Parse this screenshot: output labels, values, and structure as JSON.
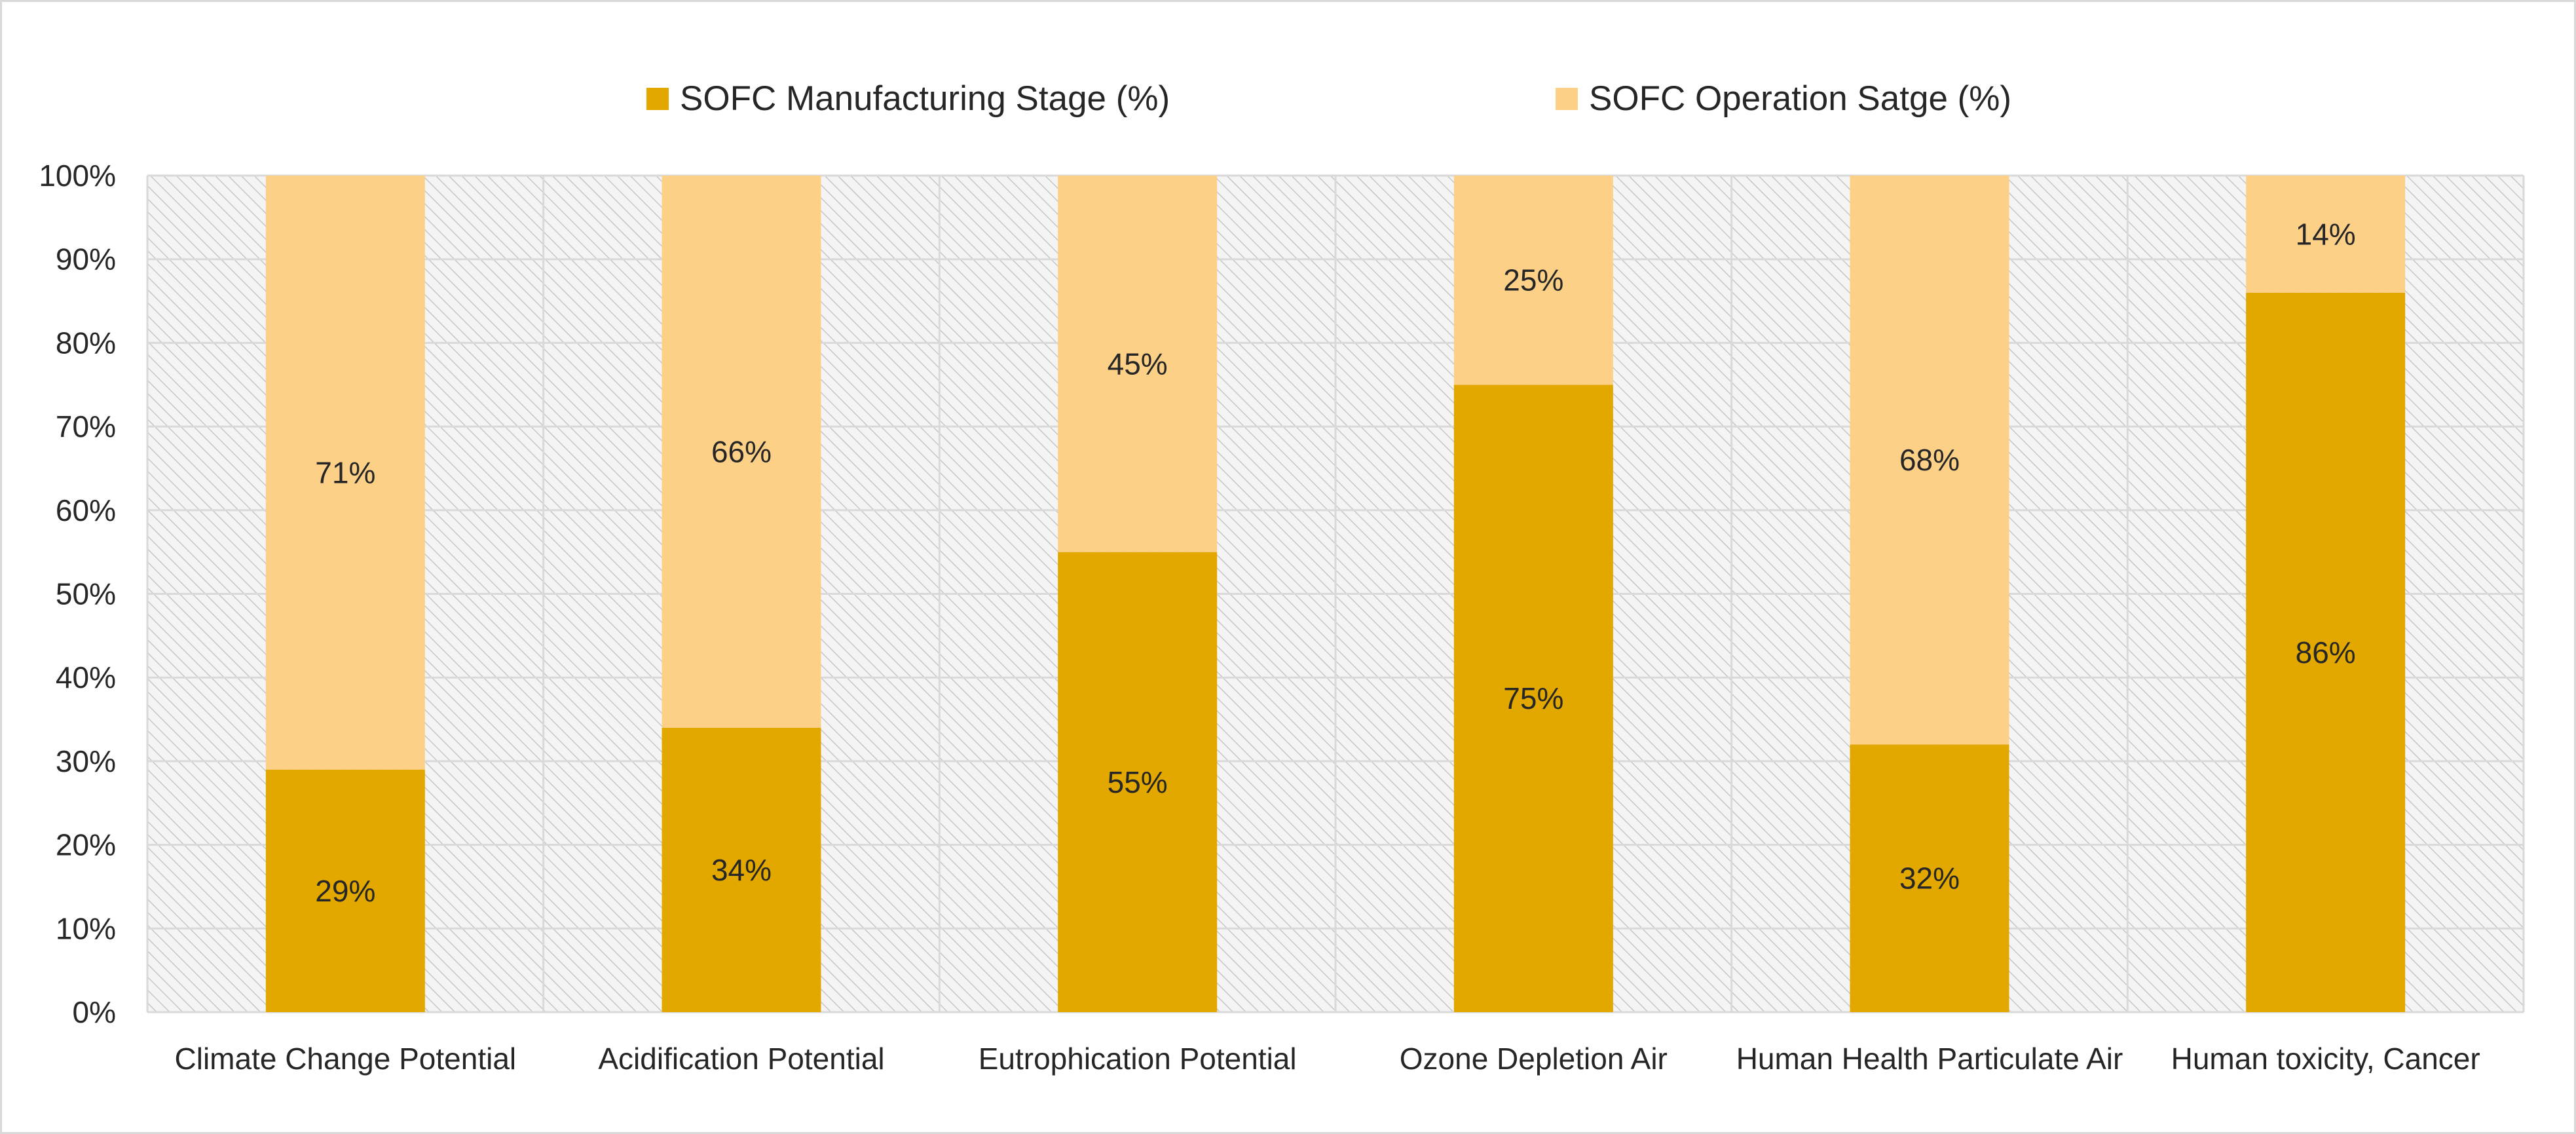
{
  "chart_data": {
    "type": "bar",
    "stacked": true,
    "percent_stacked": true,
    "title": "",
    "xlabel": "",
    "ylabel": "",
    "ylim": [
      0,
      100
    ],
    "yticks": [
      "0%",
      "10%",
      "20%",
      "30%",
      "40%",
      "50%",
      "60%",
      "70%",
      "80%",
      "90%",
      "100%"
    ],
    "grid": true,
    "legend_position": "top",
    "categories": [
      "Climate Change Potential",
      "Acidification Potential",
      "Eutrophication Potential",
      "Ozone Depletion Air",
      "Human Health Particulate Air",
      "Human toxicity, Cancer"
    ],
    "series": [
      {
        "name": "SOFC Manufacturing Stage (%)",
        "color": "#e2a800",
        "values": [
          29,
          34,
          55,
          75,
          32,
          86
        ],
        "labels": [
          "29%",
          "34%",
          "55%",
          "75%",
          "32%",
          "86%"
        ]
      },
      {
        "name": "SOFC Operation Satge (%)",
        "color": "#fdd088",
        "values": [
          71,
          66,
          45,
          25,
          68,
          14
        ],
        "labels": [
          "71%",
          "66%",
          "45%",
          "25%",
          "68%",
          "14%"
        ]
      }
    ]
  }
}
